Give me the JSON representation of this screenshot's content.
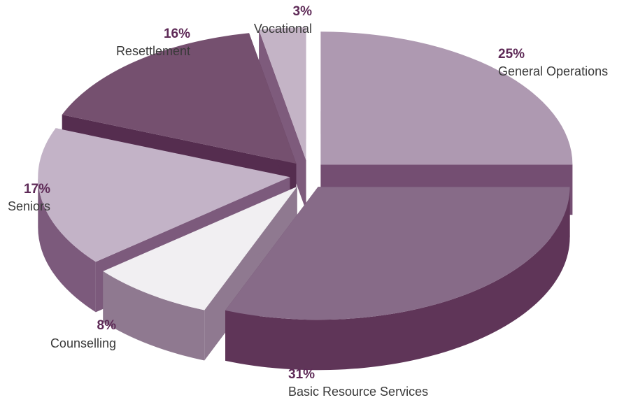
{
  "chart_data": {
    "type": "pie",
    "title": "",
    "slices": [
      {
        "label": "General Operations",
        "percent_label": "25%",
        "value": 25,
        "top_color": "#ae99b1",
        "side_color": "#744e72"
      },
      {
        "label": "Basic Resource Services",
        "percent_label": "31%",
        "value": 31,
        "top_color": "#876b88",
        "side_color": "#5f3558"
      },
      {
        "label": "Counselling",
        "percent_label": "8%",
        "value": 8,
        "top_color": "#f1eff2",
        "side_color": "#8f7990"
      },
      {
        "label": "Seniors",
        "percent_label": "17%",
        "value": 17,
        "top_color": "#c3b3c7",
        "side_color": "#7c5a7c"
      },
      {
        "label": "Resettlement",
        "percent_label": "16%",
        "value": 16,
        "top_color": "#75506f",
        "side_color": "#552d4f"
      },
      {
        "label": "Vocational",
        "percent_label": "3%",
        "value": 3,
        "top_color": "#c4b4c6",
        "side_color": "#7e5b7c"
      }
    ],
    "legend": "none",
    "style": "3d-exploded"
  }
}
